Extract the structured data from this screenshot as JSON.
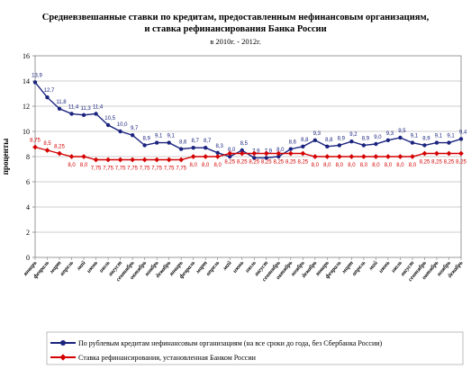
{
  "header": {
    "title_line1": "Средневзвешанные ставки по кредитам, предоставленным нефинансовым организациям,",
    "title_line2": "и ставка рефинансирования Банка России",
    "subtitle": "в 2010г. - 2012г."
  },
  "chart_data": {
    "type": "line",
    "ylabel": "проценты",
    "ylim": [
      0,
      16
    ],
    "yticks": [
      0,
      2,
      4,
      6,
      8,
      10,
      12,
      14,
      16
    ],
    "grid": true,
    "legend_position": "bottom",
    "categories": [
      "январь",
      "февраль",
      "март",
      "апрель",
      "май",
      "июнь",
      "июль",
      "август",
      "сентябрь",
      "октябрь",
      "ноябрь",
      "декабрь",
      "январь",
      "февраль",
      "март",
      "апрель",
      "май",
      "июнь",
      "июль",
      "август",
      "сентябрь",
      "октябрь",
      "ноябрь",
      "декабрь",
      "январь",
      "февраль",
      "март",
      "апрель",
      "май",
      "июнь",
      "июль",
      "август",
      "сентябрь",
      "октябрь",
      "ноябрь",
      "декабрь"
    ],
    "series": [
      {
        "name": "По рублевым кредитам нефинансовым организациям (на все сроки до года, без Сбербанка России)",
        "color": "#1a237e",
        "marker": "circle",
        "values": [
          13.9,
          12.7,
          11.8,
          11.4,
          11.3,
          11.4,
          10.5,
          10.0,
          9.7,
          8.9,
          9.1,
          9.1,
          8.6,
          8.7,
          8.7,
          8.3,
          8.0,
          8.5,
          7.9,
          7.9,
          8.0,
          8.6,
          8.8,
          9.3,
          8.8,
          8.9,
          9.2,
          8.9,
          9.0,
          9.3,
          9.5,
          9.1,
          8.9,
          9.1,
          9.1,
          9.4
        ],
        "labels": [
          "13,9",
          "12,7",
          "11,8",
          "11,4",
          "11,3",
          "11,4",
          "10,5",
          "10,0",
          "9,7",
          "8,9",
          "9,1",
          "9,1",
          "8,6",
          "8,7",
          "8,7",
          "8,3",
          "8,0",
          "8,5",
          "7,9",
          "7,9",
          "8,0",
          "8,6",
          "8,8",
          "9,3",
          "8,8",
          "8,9",
          "9,2",
          "8,9",
          "9,0",
          "9,3",
          "9,5",
          "9,1",
          "8,9",
          "9,1",
          "9,1",
          "9,4"
        ]
      },
      {
        "name": "Ставка рефинансирования, установленная Банком России",
        "color": "#d50000",
        "marker": "diamond",
        "values": [
          8.75,
          8.5,
          8.25,
          8.0,
          8.0,
          7.75,
          7.75,
          7.75,
          7.75,
          7.75,
          7.75,
          7.75,
          7.75,
          8.0,
          8.0,
          8.0,
          8.25,
          8.25,
          8.25,
          8.25,
          8.25,
          8.25,
          8.25,
          8.0,
          8.0,
          8.0,
          8.0,
          8.0,
          8.0,
          8.0,
          8.0,
          8.0,
          8.25,
          8.25,
          8.25,
          8.25
        ],
        "labels": [
          "8,75",
          "8,5",
          "8,25",
          "8,0",
          "8,0",
          "7,75",
          "7,75",
          "7,75",
          "7,75",
          "7,75",
          "7,75",
          "7,75",
          "7,75",
          "8,0",
          "8,0",
          "8,0",
          "8,25",
          "8,25",
          "8,25",
          "8,25",
          "8,25",
          "8,25",
          "8,25",
          "8,0",
          "8,0",
          "8,0",
          "8,0",
          "8,0",
          "8,0",
          "8,0",
          "8,0",
          "8,0",
          "8,25",
          "8,25",
          "8,25",
          "8,25"
        ]
      }
    ]
  }
}
